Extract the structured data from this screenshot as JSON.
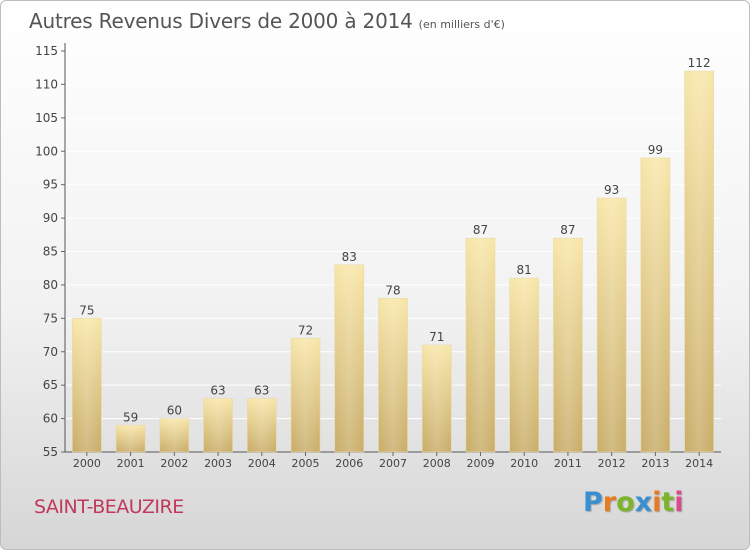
{
  "header": {
    "title": "Autres Revenus Divers de 2000 à 2014",
    "unit_note": "(en milliers d'€)"
  },
  "footer": {
    "city": "SAINT-BEAUZIRE",
    "logo_text": "Proxiti"
  },
  "colors": {
    "bar_light": "#f7e4a6",
    "bar_dark": "#c9ad6a",
    "city": "#c0395a",
    "axis": "#555555",
    "grid": "#ffffff"
  },
  "chart_data": {
    "type": "bar",
    "title": "Autres Revenus Divers de 2000 à 2014",
    "subtitle": "(en milliers d'€)",
    "xlabel": "",
    "ylabel": "",
    "categories": [
      "2000",
      "2001",
      "2002",
      "2003",
      "2004",
      "2005",
      "2006",
      "2007",
      "2008",
      "2009",
      "2010",
      "2011",
      "2012",
      "2013",
      "2014"
    ],
    "values": [
      75,
      59,
      60,
      63,
      63,
      72,
      83,
      78,
      71,
      87,
      81,
      87,
      93,
      99,
      112
    ],
    "ylim": [
      55,
      115
    ],
    "yticks": [
      55,
      60,
      65,
      70,
      75,
      80,
      85,
      90,
      95,
      100,
      105,
      110,
      115
    ],
    "grid": true,
    "data_labels": true
  }
}
